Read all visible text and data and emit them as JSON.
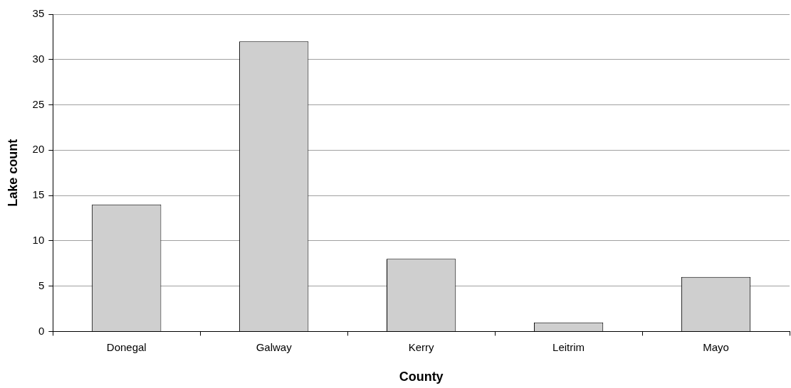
{
  "chart_data": {
    "type": "bar",
    "xlabel": "County",
    "ylabel": "Lake count",
    "categories": [
      "Donegal",
      "Galway",
      "Kerry",
      "Leitrim",
      "Mayo"
    ],
    "values": [
      14,
      32,
      8,
      1,
      6
    ],
    "color": "#cfcfcf",
    "ylim": [
      0,
      35
    ],
    "yticks": [
      0,
      5,
      10,
      15,
      20,
      25,
      30,
      35
    ],
    "grid": "y"
  }
}
